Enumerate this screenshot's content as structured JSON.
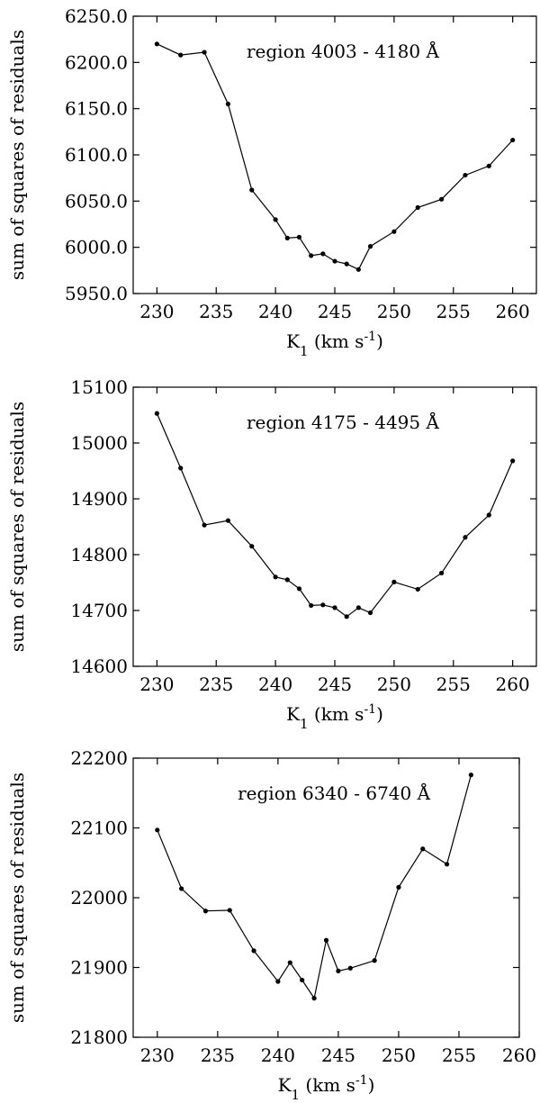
{
  "chart_data": [
    {
      "type": "line",
      "title": "",
      "xlabel": "K1 (km s-1)",
      "ylabel": "sum of squares of residuals",
      "annotation": "region 4003 - 4180 Å",
      "xlim": [
        228,
        262
      ],
      "ylim": [
        5950,
        6250
      ],
      "xticks": [
        230,
        235,
        240,
        245,
        250,
        255,
        260
      ],
      "yticks": [
        5950,
        6000,
        6050,
        6100,
        6150,
        6200,
        6250
      ],
      "ytick_labels": [
        "5950.0",
        "6000.0",
        "6050.0",
        "6100.0",
        "6150.0",
        "6200.0",
        "6250.0"
      ],
      "grid": false,
      "series": [
        {
          "x": [
            230,
            232,
            234,
            236,
            238,
            240,
            241,
            242,
            243,
            244,
            245,
            246,
            247,
            248,
            250,
            252,
            254,
            256,
            258,
            260
          ],
          "y": [
            6220,
            6208,
            6211,
            6155,
            6062,
            6030,
            6010,
            6011,
            5991,
            5993,
            5985,
            5982,
            5976,
            6001,
            6017,
            6043,
            6052,
            6078,
            6088,
            6116
          ]
        }
      ]
    },
    {
      "type": "line",
      "title": "",
      "xlabel": "K1 (km s-1)",
      "ylabel": "sum of squares of residuals",
      "annotation": "region 4175 - 4495 Å",
      "xlim": [
        228,
        262
      ],
      "ylim": [
        14600,
        15100
      ],
      "xticks": [
        230,
        235,
        240,
        245,
        250,
        255,
        260
      ],
      "yticks": [
        14600,
        14700,
        14800,
        14900,
        15000,
        15100
      ],
      "ytick_labels": [
        "14600",
        "14700",
        "14800",
        "14900",
        "15000",
        "15100"
      ],
      "grid": false,
      "series": [
        {
          "x": [
            230,
            232,
            234,
            236,
            238,
            240,
            241,
            242,
            243,
            244,
            245,
            246,
            247,
            248,
            250,
            252,
            254,
            256,
            258,
            260
          ],
          "y": [
            15053,
            14955,
            14853,
            14861,
            14815,
            14760,
            14755,
            14739,
            14709,
            14710,
            14705,
            14689,
            14705,
            14696,
            14751,
            14738,
            14767,
            14831,
            14871,
            14968
          ]
        }
      ]
    },
    {
      "type": "line",
      "title": "",
      "xlabel": "K1 (km s-1)",
      "ylabel": "sum of squares of residuals",
      "annotation": "region 6340 - 6740 Å",
      "xlim": [
        228,
        260
      ],
      "ylim": [
        21800,
        22200
      ],
      "xticks": [
        230,
        235,
        240,
        245,
        250,
        255,
        260
      ],
      "yticks": [
        21800,
        21900,
        22000,
        22100,
        22200
      ],
      "ytick_labels": [
        "21800",
        "21900",
        "22000",
        "22100",
        "22200"
      ],
      "grid": false,
      "series": [
        {
          "x": [
            230,
            232,
            234,
            236,
            238,
            240,
            241,
            242,
            243,
            244,
            245,
            246,
            248,
            250,
            252,
            254,
            256
          ],
          "y": [
            22097,
            22013,
            21981,
            21982,
            21924,
            21880,
            21907,
            21882,
            21856,
            21939,
            21895,
            21899,
            21910,
            22015,
            22070,
            22048,
            22176
          ]
        }
      ]
    }
  ]
}
